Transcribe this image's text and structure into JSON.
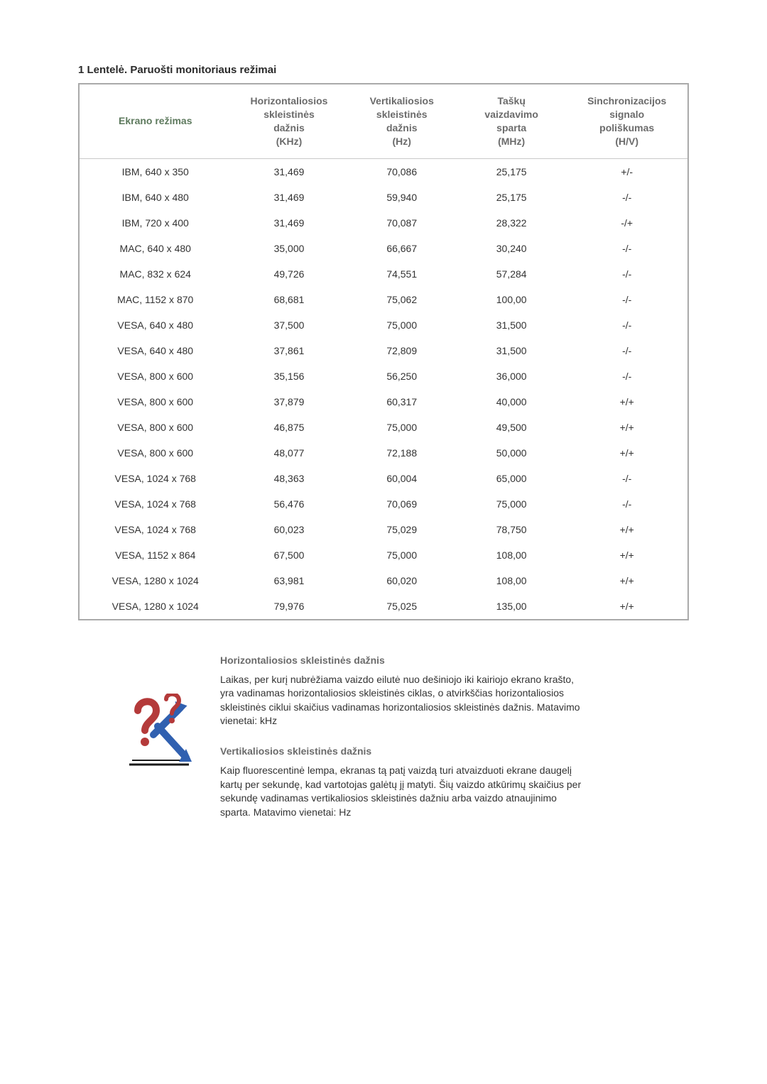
{
  "title": "1 Lentelė. Paruošti monitoriaus režimai",
  "table": {
    "headers": {
      "col0": "Ekrano režimas",
      "col1": "Horizontaliosios\nskleistinės\ndažnis\n(KHz)",
      "col2": "Vertikaliosios\nskleistinės\ndažnis\n(Hz)",
      "col3": "Taškų\nvaizdavimo\nsparta\n(MHz)",
      "col4": "Sinchronizacijos\nsignalo\npoliškumas\n(H/V)"
    },
    "rows": [
      {
        "c0": "IBM, 640 x 350",
        "c1": "31,469",
        "c2": "70,086",
        "c3": "25,175",
        "c4": "+/-"
      },
      {
        "c0": "IBM, 640 x 480",
        "c1": "31,469",
        "c2": "59,940",
        "c3": "25,175",
        "c4": "-/-"
      },
      {
        "c0": "IBM, 720 x 400",
        "c1": "31,469",
        "c2": "70,087",
        "c3": "28,322",
        "c4": "-/+"
      },
      {
        "c0": "MAC, 640 x 480",
        "c1": "35,000",
        "c2": "66,667",
        "c3": "30,240",
        "c4": "-/-"
      },
      {
        "c0": "MAC, 832 x 624",
        "c1": "49,726",
        "c2": "74,551",
        "c3": "57,284",
        "c4": "-/-"
      },
      {
        "c0": "MAC, 1152 x 870",
        "c1": "68,681",
        "c2": "75,062",
        "c3": "100,00",
        "c4": "-/-"
      },
      {
        "c0": "VESA, 640 x 480",
        "c1": "37,500",
        "c2": "75,000",
        "c3": "31,500",
        "c4": "-/-"
      },
      {
        "c0": "VESA, 640 x 480",
        "c1": "37,861",
        "c2": "72,809",
        "c3": "31,500",
        "c4": "-/-"
      },
      {
        "c0": "VESA, 800 x 600",
        "c1": "35,156",
        "c2": "56,250",
        "c3": "36,000",
        "c4": "-/-"
      },
      {
        "c0": "VESA, 800 x 600",
        "c1": "37,879",
        "c2": "60,317",
        "c3": "40,000",
        "c4": "+/+"
      },
      {
        "c0": "VESA, 800 x 600",
        "c1": "46,875",
        "c2": "75,000",
        "c3": "49,500",
        "c4": "+/+"
      },
      {
        "c0": "VESA, 800 x 600",
        "c1": "48,077",
        "c2": "72,188",
        "c3": "50,000",
        "c4": "+/+"
      },
      {
        "c0": "VESA, 1024 x 768",
        "c1": "48,363",
        "c2": "60,004",
        "c3": "65,000",
        "c4": "-/-"
      },
      {
        "c0": "VESA, 1024 x 768",
        "c1": "56,476",
        "c2": "70,069",
        "c3": "75,000",
        "c4": "-/-"
      },
      {
        "c0": "VESA, 1024 x 768",
        "c1": "60,023",
        "c2": "75,029",
        "c3": "78,750",
        "c4": "+/+"
      },
      {
        "c0": "VESA, 1152 x 864",
        "c1": "67,500",
        "c2": "75,000",
        "c3": "108,00",
        "c4": "+/+"
      },
      {
        "c0": "VESA, 1280 x 1024",
        "c1": "63,981",
        "c2": "60,020",
        "c3": "108,00",
        "c4": "+/+"
      },
      {
        "c0": "VESA, 1280 x 1024",
        "c1": "79,976",
        "c2": "75,025",
        "c3": "135,00",
        "c4": "+/+"
      }
    ],
    "border_color": "#aaaaaa",
    "header_text_color": "#6b6b6b",
    "first_header_color": "#5e7a5e",
    "cell_text_color": "#333333",
    "fontsize_header": 14,
    "fontsize_cell": 14,
    "col_widths": [
      "25%",
      "19%",
      "18%",
      "18%",
      "20%"
    ]
  },
  "definitions": {
    "h1": "Horizontaliosios skleistinės dažnis",
    "p1": "Laikas, per kurį nubrėžiama vaizdo eilutė nuo dešiniojo iki kairiojo ekrano krašto, yra vadinamas horizontaliosios skleistinės ciklas, o atvirkščias horizontaliosios skleistinės ciklui skaičius vadinamas horizontaliosios skleistinės dažnis. Matavimo vienetai: kHz",
    "h2": "Vertikaliosios skleistinės dažnis",
    "p2": "Kaip fluorescentinė lempa, ekranas tą patį vaizdą turi atvaizduoti ekrane daugelį kartų per sekundę, kad vartotojas galėtų jį matyti. Šių vaizdo atkūrimų skaičius per sekundę vadinamas vertikaliosios skleistinės dažniu arba vaizdo atnaujinimo sparta. Matavimo vienetai: Hz"
  },
  "icon_colors": {
    "red": "#b43a3a",
    "blue": "#3060b0",
    "dark": "#1a1a1a"
  }
}
